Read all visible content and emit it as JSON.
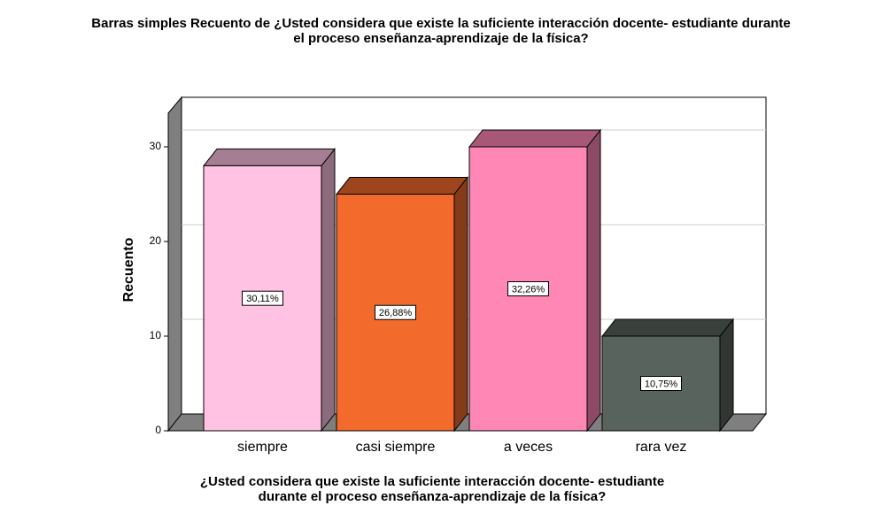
{
  "chart_data": {
    "type": "bar3d",
    "title": [
      "Barras simples Recuento de ¿Usted considera que existe la suficiente interacción docente- estudiante durante",
      "el proceso enseñanza-aprendizaje de la física?"
    ],
    "x_label": [
      "¿Usted considera que existe la suficiente interacción docente- estudiante",
      "durante el proceso enseñanza-aprendizaje de la física?"
    ],
    "y_label": "Recuento",
    "categories": [
      "siempre",
      "casi siempre",
      "a veces",
      "rara vez"
    ],
    "values": [
      28,
      25,
      30,
      10
    ],
    "percent_labels": [
      "30,11%",
      "26,88%",
      "32,26%",
      "10,75%"
    ],
    "colors": [
      "#ffc2e2",
      "#f26a2c",
      "#ff87b6",
      "#59635d"
    ],
    "ylim": [
      0,
      34
    ],
    "yticks": [
      0,
      10,
      20,
      30
    ],
    "grid": true
  }
}
